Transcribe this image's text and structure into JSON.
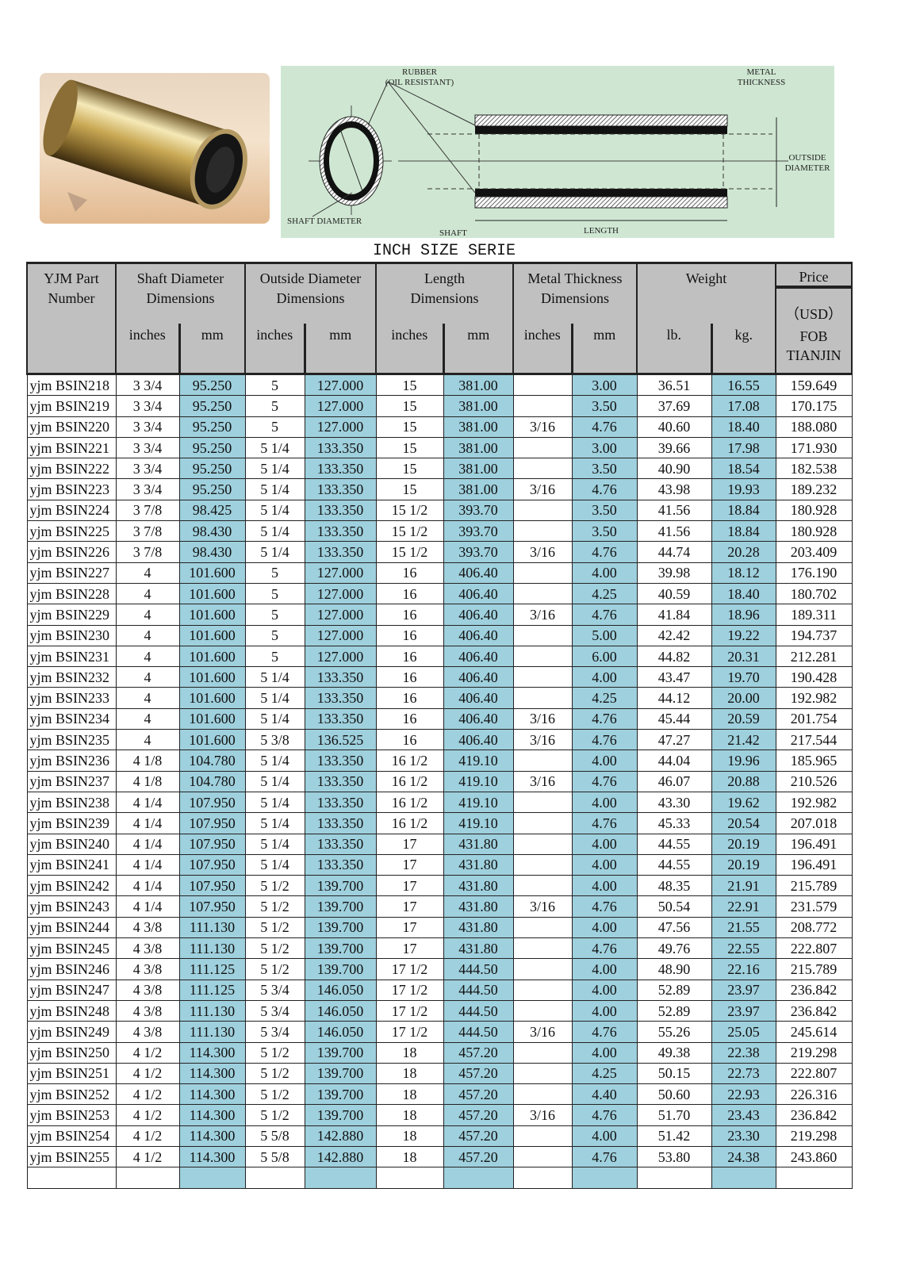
{
  "diagram": {
    "rubber": "RUBBER",
    "oil_resistant": "(OIL RESISTANT)",
    "metal": "METAL",
    "thickness": "THICKNESS",
    "outside": "OUTSIDE",
    "diameter": "DIAMETER",
    "shaft_diameter": "SHAFT DIAMETER",
    "shaft": "SHAFT",
    "length": "LENGTH"
  },
  "title": "INCH SIZE SERIE",
  "colors": {
    "header_bg": "#c0c0c0",
    "highlight_col": "#9fd0dd",
    "diagram_bg": "#cfe7d2"
  },
  "header": {
    "part": [
      "YJM Part",
      "Number"
    ],
    "groups": [
      {
        "title": "Shaft  Diameter",
        "sub": "Dimensions",
        "cols": [
          "inches",
          "mm"
        ]
      },
      {
        "title": "Outside Diameter",
        "sub": "Dimensions",
        "cols": [
          "inches",
          "mm"
        ]
      },
      {
        "title": "Length",
        "sub": "Dimensions",
        "cols": [
          "inches",
          "mm"
        ]
      },
      {
        "title": "Metal Thickness",
        "sub": "Dimensions",
        "cols": [
          "inches",
          "mm"
        ]
      },
      {
        "title": "Weight",
        "sub": "",
        "cols": [
          "lb.",
          "kg."
        ]
      }
    ],
    "price": [
      "Price",
      "（USD）",
      "FOB",
      "TIANJIN"
    ]
  },
  "rows": [
    [
      "yjm BSIN218",
      "3 3/4",
      "95.250",
      "5",
      "127.000",
      "15",
      "381.00",
      "",
      "3.00",
      "36.51",
      "16.55",
      "159.649"
    ],
    [
      "yjm BSIN219",
      "3 3/4",
      "95.250",
      "5",
      "127.000",
      "15",
      "381.00",
      "",
      "3.50",
      "37.69",
      "17.08",
      "170.175"
    ],
    [
      "yjm BSIN220",
      "3 3/4",
      "95.250",
      "5",
      "127.000",
      "15",
      "381.00",
      "3/16",
      "4.76",
      "40.60",
      "18.40",
      "188.080"
    ],
    [
      "yjm BSIN221",
      "3 3/4",
      "95.250",
      "5 1/4",
      "133.350",
      "15",
      "381.00",
      "",
      "3.00",
      "39.66",
      "17.98",
      "171.930"
    ],
    [
      "yjm BSIN222",
      "3 3/4",
      "95.250",
      "5 1/4",
      "133.350",
      "15",
      "381.00",
      "",
      "3.50",
      "40.90",
      "18.54",
      "182.538"
    ],
    [
      "yjm BSIN223",
      "3 3/4",
      "95.250",
      "5 1/4",
      "133.350",
      "15",
      "381.00",
      "3/16",
      "4.76",
      "43.98",
      "19.93",
      "189.232"
    ],
    [
      "yjm BSIN224",
      "3 7/8",
      "98.425",
      "5 1/4",
      "133.350",
      "15 1/2",
      "393.70",
      "",
      "3.50",
      "41.56",
      "18.84",
      "180.928"
    ],
    [
      "yjm BSIN225",
      "3 7/8",
      "98.430",
      "5 1/4",
      "133.350",
      "15 1/2",
      "393.70",
      "",
      "3.50",
      "41.56",
      "18.84",
      "180.928"
    ],
    [
      "yjm BSIN226",
      "3 7/8",
      "98.430",
      "5 1/4",
      "133.350",
      "15 1/2",
      "393.70",
      "3/16",
      "4.76",
      "44.74",
      "20.28",
      "203.409"
    ],
    [
      "yjm BSIN227",
      "4",
      "101.600",
      "5",
      "127.000",
      "16",
      "406.40",
      "",
      "4.00",
      "39.98",
      "18.12",
      "176.190"
    ],
    [
      "yjm BSIN228",
      "4",
      "101.600",
      "5",
      "127.000",
      "16",
      "406.40",
      "",
      "4.25",
      "40.59",
      "18.40",
      "180.702"
    ],
    [
      "yjm BSIN229",
      "4",
      "101.600",
      "5",
      "127.000",
      "16",
      "406.40",
      "3/16",
      "4.76",
      "41.84",
      "18.96",
      "189.311"
    ],
    [
      "yjm BSIN230",
      "4",
      "101.600",
      "5",
      "127.000",
      "16",
      "406.40",
      "",
      "5.00",
      "42.42",
      "19.22",
      "194.737"
    ],
    [
      "yjm BSIN231",
      "4",
      "101.600",
      "5",
      "127.000",
      "16",
      "406.40",
      "",
      "6.00",
      "44.82",
      "20.31",
      "212.281"
    ],
    [
      "yjm BSIN232",
      "4",
      "101.600",
      "5 1/4",
      "133.350",
      "16",
      "406.40",
      "",
      "4.00",
      "43.47",
      "19.70",
      "190.428"
    ],
    [
      "yjm BSIN233",
      "4",
      "101.600",
      "5 1/4",
      "133.350",
      "16",
      "406.40",
      "",
      "4.25",
      "44.12",
      "20.00",
      "192.982"
    ],
    [
      "yjm BSIN234",
      "4",
      "101.600",
      "5 1/4",
      "133.350",
      "16",
      "406.40",
      "3/16",
      "4.76",
      "45.44",
      "20.59",
      "201.754"
    ],
    [
      "yjm BSIN235",
      "4",
      "101.600",
      "5 3/8",
      "136.525",
      "16",
      "406.40",
      "3/16",
      "4.76",
      "47.27",
      "21.42",
      "217.544"
    ],
    [
      "yjm BSIN236",
      "4 1/8",
      "104.780",
      "5 1/4",
      "133.350",
      "16 1/2",
      "419.10",
      "",
      "4.00",
      "44.04",
      "19.96",
      "185.965"
    ],
    [
      "yjm BSIN237",
      "4 1/8",
      "104.780",
      "5 1/4",
      "133.350",
      "16 1/2",
      "419.10",
      "3/16",
      "4.76",
      "46.07",
      "20.88",
      "210.526"
    ],
    [
      "yjm BSIN238",
      "4 1/4",
      "107.950",
      "5 1/4",
      "133.350",
      "16 1/2",
      "419.10",
      "",
      "4.00",
      "43.30",
      "19.62",
      "192.982"
    ],
    [
      "yjm BSIN239",
      "4 1/4",
      "107.950",
      "5 1/4",
      "133.350",
      "16 1/2",
      "419.10",
      "",
      "4.76",
      "45.33",
      "20.54",
      "207.018"
    ],
    [
      "yjm BSIN240",
      "4 1/4",
      "107.950",
      "5 1/4",
      "133.350",
      "17",
      "431.80",
      "",
      "4.00",
      "44.55",
      "20.19",
      "196.491"
    ],
    [
      "yjm BSIN241",
      "4 1/4",
      "107.950",
      "5 1/4",
      "133.350",
      "17",
      "431.80",
      "",
      "4.00",
      "44.55",
      "20.19",
      "196.491"
    ],
    [
      "yjm BSIN242",
      "4 1/4",
      "107.950",
      "5 1/2",
      "139.700",
      "17",
      "431.80",
      "",
      "4.00",
      "48.35",
      "21.91",
      "215.789"
    ],
    [
      "yjm BSIN243",
      "4 1/4",
      "107.950",
      "5 1/2",
      "139.700",
      "17",
      "431.80",
      "3/16",
      "4.76",
      "50.54",
      "22.91",
      "231.579"
    ],
    [
      "yjm BSIN244",
      "4 3/8",
      "111.130",
      "5 1/2",
      "139.700",
      "17",
      "431.80",
      "",
      "4.00",
      "47.56",
      "21.55",
      "208.772"
    ],
    [
      "yjm BSIN245",
      "4 3/8",
      "111.130",
      "5 1/2",
      "139.700",
      "17",
      "431.80",
      "",
      "4.76",
      "49.76",
      "22.55",
      "222.807"
    ],
    [
      "yjm BSIN246",
      "4 3/8",
      "111.125",
      "5 1/2",
      "139.700",
      "17 1/2",
      "444.50",
      "",
      "4.00",
      "48.90",
      "22.16",
      "215.789"
    ],
    [
      "yjm BSIN247",
      "4 3/8",
      "111.125",
      "5 3/4",
      "146.050",
      "17 1/2",
      "444.50",
      "",
      "4.00",
      "52.89",
      "23.97",
      "236.842"
    ],
    [
      "yjm BSIN248",
      "4 3/8",
      "111.130",
      "5 3/4",
      "146.050",
      "17 1/2",
      "444.50",
      "",
      "4.00",
      "52.89",
      "23.97",
      "236.842"
    ],
    [
      "yjm BSIN249",
      "4 3/8",
      "111.130",
      "5 3/4",
      "146.050",
      "17 1/2",
      "444.50",
      "3/16",
      "4.76",
      "55.26",
      "25.05",
      "245.614"
    ],
    [
      "yjm BSIN250",
      "4 1/2",
      "114.300",
      "5 1/2",
      "139.700",
      "18",
      "457.20",
      "",
      "4.00",
      "49.38",
      "22.38",
      "219.298"
    ],
    [
      "yjm BSIN251",
      "4 1/2",
      "114.300",
      "5 1/2",
      "139.700",
      "18",
      "457.20",
      "",
      "4.25",
      "50.15",
      "22.73",
      "222.807"
    ],
    [
      "yjm BSIN252",
      "4 1/2",
      "114.300",
      "5 1/2",
      "139.700",
      "18",
      "457.20",
      "",
      "4.40",
      "50.60",
      "22.93",
      "226.316"
    ],
    [
      "yjm BSIN253",
      "4 1/2",
      "114.300",
      "5 1/2",
      "139.700",
      "18",
      "457.20",
      "3/16",
      "4.76",
      "51.70",
      "23.43",
      "236.842"
    ],
    [
      "yjm BSIN254",
      "4 1/2",
      "114.300",
      "5 5/8",
      "142.880",
      "18",
      "457.20",
      "",
      "4.00",
      "51.42",
      "23.30",
      "219.298"
    ],
    [
      "yjm BSIN255",
      "4 1/2",
      "114.300",
      "5 5/8",
      "142.880",
      "18",
      "457.20",
      "",
      "4.76",
      "53.80",
      "24.38",
      "243.860"
    ],
    [
      "",
      "",
      "",
      "",
      "",
      "",
      "",
      "",
      "",
      "",
      "",
      ""
    ]
  ]
}
